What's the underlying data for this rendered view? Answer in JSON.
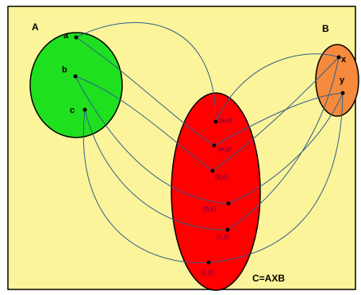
{
  "diagram": {
    "background_color": "#fcf49a",
    "frame_color": "#000000",
    "set_a": {
      "label": "A",
      "color": "#1fe01f",
      "elements": [
        "a",
        "b",
        "c"
      ]
    },
    "set_b": {
      "label": "B",
      "color": "#f58a3c",
      "elements": [
        "x",
        "y"
      ]
    },
    "set_c": {
      "label": "C=AXB",
      "color": "#ff0000",
      "pairs": [
        "(a,x)",
        "(a,y)",
        "(b,x)",
        "(b,y)",
        "(c,x)",
        "(c,y)"
      ]
    },
    "connector_color": "#2f5f8a"
  }
}
